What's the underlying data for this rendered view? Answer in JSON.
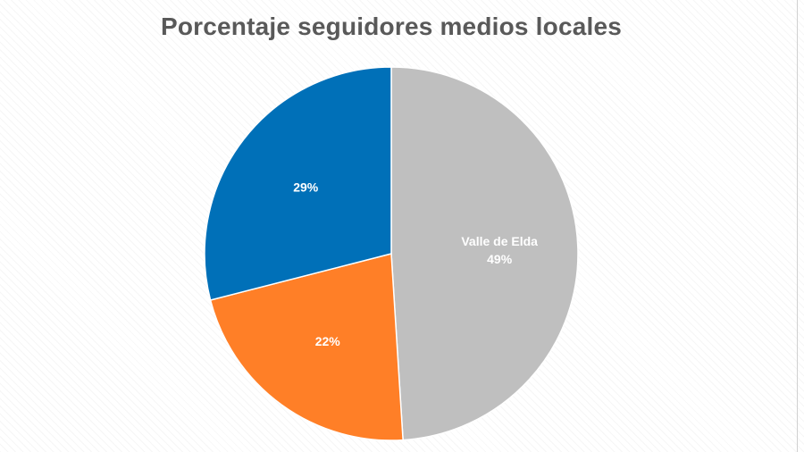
{
  "chart_data": {
    "type": "pie",
    "title": "Porcentaje seguidores medios locales",
    "slices": [
      {
        "name": "Valle de Elda",
        "value": 49,
        "label": "49%",
        "color": "#bfbfbf"
      },
      {
        "name": "",
        "value": 22,
        "label": "22%",
        "color": "#ff7f27"
      },
      {
        "name": "",
        "value": 29,
        "label": "29%",
        "color": "#0070b8"
      }
    ],
    "start_angle_deg": 0,
    "direction": "clockwise",
    "legend": "none"
  }
}
